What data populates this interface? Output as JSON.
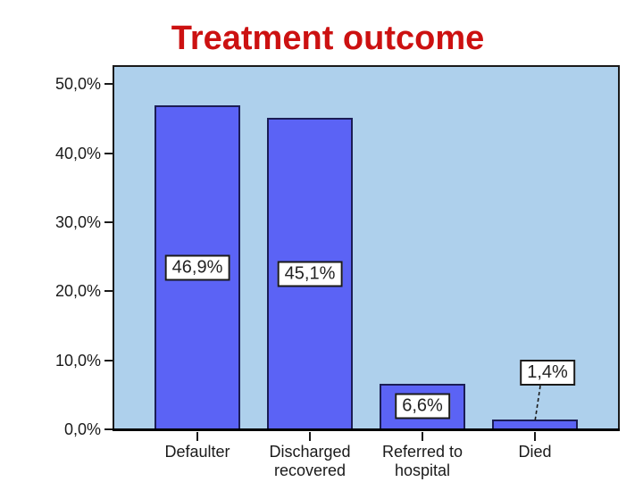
{
  "slide": {
    "background": "#ffffff"
  },
  "chart_data": {
    "type": "bar",
    "title": "Treatment outcome",
    "categories": [
      "Defaulter",
      "Discharged recovered",
      "Referred to hospital",
      "Died"
    ],
    "values": [
      46.9,
      45.1,
      6.6,
      1.4
    ],
    "data_labels": [
      "46,9%",
      "45,1%",
      "6,6%",
      "1,4%"
    ],
    "yticks": [
      0,
      10,
      20,
      30,
      40,
      50
    ],
    "ytick_labels": [
      "0,0%",
      "10,0%",
      "20,0%",
      "30,0%",
      "40,0%",
      "50,0%"
    ],
    "ylim": [
      0,
      53
    ],
    "xlabel": "",
    "ylabel": "",
    "grid": false,
    "legend": "none",
    "bar_label_style": "boxed value labels with white background; labels sit mid-bar, small bars labeled above bar with dashed callout line",
    "colors": {
      "title_color": "#cc1111",
      "bar_fill": "#5b63f5",
      "bar_border": "#1b1d55",
      "plot_bg": "#aed0ec",
      "plot_border": "#1a1a1a",
      "axis_line": "#000000",
      "axis_text": "#1a1a1a",
      "label_box_bg": "#ffffff",
      "label_box_border": "#1a1a1a",
      "label_text": "#222222",
      "page_bg": "#ffffff"
    }
  }
}
